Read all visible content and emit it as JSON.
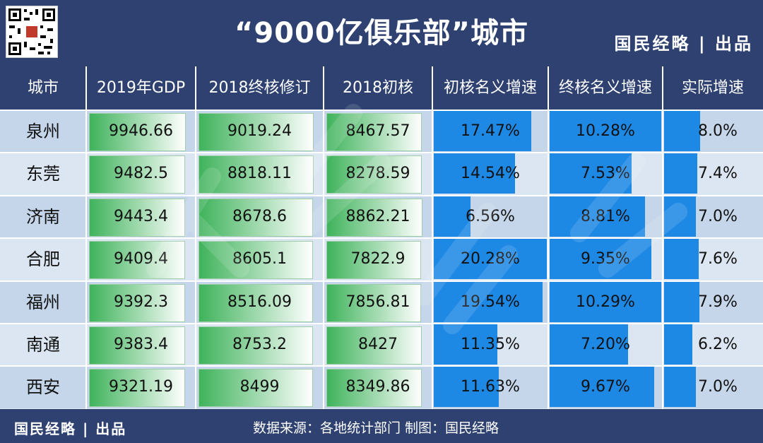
{
  "header": {
    "title": "“9000亿俱乐部”城市",
    "brand": "国民经略 | 出品"
  },
  "footer": {
    "brand": "国民经略 | 出品",
    "source": "数据来源：各地统计部门 制图：国民经略"
  },
  "colors": {
    "header_bg": "#2e4170",
    "green_bar": "#3fb35b",
    "blue_bar": "#1e88e5",
    "row_odd": "#c5d6ea",
    "row_even": "#dbe6f2"
  },
  "chart_data": {
    "type": "table",
    "columns": [
      "城市",
      "2019年GDP",
      "2018终核修订",
      "2018初核",
      "初核名义增速",
      "终核名义增速",
      "实际增速"
    ],
    "rows": [
      {
        "city": "泉州",
        "gdp2019": "9946.66",
        "final2018": "9019.24",
        "initial2018": "8467.57",
        "initial_growth": "17.47%",
        "final_growth": "10.28%",
        "real_growth": "8.0%"
      },
      {
        "city": "东莞",
        "gdp2019": "9482.5",
        "final2018": "8818.11",
        "initial2018": "8278.59",
        "initial_growth": "14.54%",
        "final_growth": "7.53%",
        "real_growth": "7.4%"
      },
      {
        "city": "济南",
        "gdp2019": "9443.4",
        "final2018": "8678.6",
        "initial2018": "8862.21",
        "initial_growth": "6.56%",
        "final_growth": "8.81%",
        "real_growth": "7.0%"
      },
      {
        "city": "合肥",
        "gdp2019": "9409.4",
        "final2018": "8605.1",
        "initial2018": "7822.9",
        "initial_growth": "20.28%",
        "final_growth": "9.35%",
        "real_growth": "7.6%"
      },
      {
        "city": "福州",
        "gdp2019": "9392.3",
        "final2018": "8516.09",
        "initial2018": "7856.81",
        "initial_growth": "19.54%",
        "final_growth": "10.29%",
        "real_growth": "7.9%"
      },
      {
        "city": "南通",
        "gdp2019": "9383.4",
        "final2018": "8753.2",
        "initial2018": "8427",
        "initial_growth": "11.35%",
        "final_growth": "7.20%",
        "real_growth": "6.2%"
      },
      {
        "city": "西安",
        "gdp2019": "9321.19",
        "final2018": "8499",
        "initial2018": "8349.86",
        "initial_growth": "11.63%",
        "final_growth": "9.67%",
        "real_growth": "7.0%"
      }
    ]
  }
}
